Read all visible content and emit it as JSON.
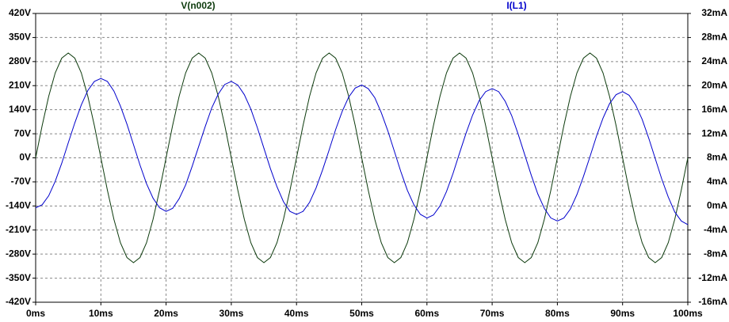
{
  "chart_data": {
    "type": "line",
    "x": [
      0,
      1,
      2,
      3,
      4,
      5,
      6,
      7,
      8,
      9,
      10,
      11,
      12,
      13,
      14,
      15,
      16,
      17,
      18,
      19,
      20,
      21,
      22,
      23,
      24,
      25,
      26,
      27,
      28,
      29,
      30,
      31,
      32,
      33,
      34,
      35,
      36,
      37,
      38,
      39,
      40,
      41,
      42,
      43,
      44,
      45,
      46,
      47,
      48,
      49,
      50,
      51,
      52,
      53,
      54,
      55,
      56,
      57,
      58,
      59,
      60,
      61,
      62,
      63,
      64,
      65,
      66,
      67,
      68,
      69,
      70,
      71,
      72,
      73,
      74,
      75,
      76,
      77,
      78,
      79,
      80,
      81,
      82,
      83,
      84,
      85,
      86,
      87,
      88,
      89,
      90,
      91,
      92,
      93,
      94,
      95,
      96,
      97,
      98,
      99,
      100
    ],
    "xlim": [
      0,
      100
    ],
    "xticks": [
      {
        "value": 0,
        "label": "0ms"
      },
      {
        "value": 10,
        "label": "10ms"
      },
      {
        "value": 20,
        "label": "20ms"
      },
      {
        "value": 30,
        "label": "30ms"
      },
      {
        "value": 40,
        "label": "40ms"
      },
      {
        "value": 50,
        "label": "50ms"
      },
      {
        "value": 60,
        "label": "60ms"
      },
      {
        "value": 70,
        "label": "70ms"
      },
      {
        "value": 80,
        "label": "80ms"
      },
      {
        "value": 90,
        "label": "90ms"
      },
      {
        "value": 100,
        "label": "100ms"
      }
    ],
    "ylim": [
      -420,
      420
    ],
    "yticks": [
      {
        "value": -420,
        "label": "-420V"
      },
      {
        "value": -350,
        "label": "-350V"
      },
      {
        "value": -280,
        "label": "-280V"
      },
      {
        "value": -210,
        "label": "-210V"
      },
      {
        "value": -140,
        "label": "-140V"
      },
      {
        "value": -70,
        "label": "-70V"
      },
      {
        "value": 0,
        "label": "0V"
      },
      {
        "value": 70,
        "label": "70V"
      },
      {
        "value": 140,
        "label": "140V"
      },
      {
        "value": 210,
        "label": "210V"
      },
      {
        "value": 280,
        "label": "280V"
      },
      {
        "value": 350,
        "label": "350V"
      },
      {
        "value": 420,
        "label": "420V"
      }
    ],
    "y2lim": [
      -16,
      32
    ],
    "y2ticks": [
      {
        "value": -16,
        "label": "-16mA"
      },
      {
        "value": -12,
        "label": "-12mA"
      },
      {
        "value": -8,
        "label": "-8mA"
      },
      {
        "value": -4,
        "label": "-4mA"
      },
      {
        "value": 0,
        "label": "0mA"
      },
      {
        "value": 4,
        "label": "4mA"
      },
      {
        "value": 8,
        "label": "8mA"
      },
      {
        "value": 12,
        "label": "12mA"
      },
      {
        "value": 16,
        "label": "16mA"
      },
      {
        "value": 20,
        "label": "20mA"
      },
      {
        "value": 24,
        "label": "24mA"
      },
      {
        "value": 28,
        "label": "28mA"
      },
      {
        "value": 32,
        "label": "32mA"
      }
    ],
    "grid": true,
    "series": [
      {
        "name": "V(n002)",
        "color": "#0d3b0d",
        "values": [
          0,
          94,
          179,
          247,
          290,
          305,
          290,
          247,
          179,
          94,
          0,
          -94,
          -179,
          -247,
          -290,
          -305,
          -290,
          -247,
          -179,
          -94,
          0,
          94,
          179,
          247,
          290,
          305,
          290,
          247,
          179,
          94,
          0,
          -94,
          -179,
          -247,
          -290,
          -305,
          -290,
          -247,
          -179,
          -94,
          0,
          94,
          179,
          247,
          290,
          305,
          290,
          247,
          179,
          94,
          0,
          -94,
          -179,
          -247,
          -290,
          -305,
          -290,
          -247,
          -179,
          -94,
          0,
          94,
          179,
          247,
          290,
          305,
          290,
          247,
          179,
          94,
          0,
          -94,
          -179,
          -247,
          -290,
          -305,
          -290,
          -247,
          -179,
          -94,
          0,
          94,
          179,
          247,
          290,
          305,
          290,
          247,
          179,
          94,
          0,
          -94,
          -179,
          -247,
          -290,
          -305,
          -290,
          -247,
          -179,
          -94,
          0
        ]
      },
      {
        "name": "I(L1)",
        "color": "#0000cc",
        "axis": "y2",
        "values": [
          -0.3,
          0.2,
          1.7,
          4.1,
          7.1,
          10.5,
          13.8,
          16.8,
          19.2,
          20.7,
          21.2,
          20.7,
          19.1,
          16.6,
          13.6,
          10.2,
          6.8,
          3.7,
          1.3,
          -0.3,
          -0.9,
          -0.4,
          1.2,
          3.5,
          6.6,
          9.9,
          13.2,
          16.3,
          18.6,
          20.2,
          20.7,
          20.1,
          18.5,
          16.1,
          13.0,
          9.6,
          6.2,
          3.2,
          0.7,
          -0.9,
          -1.4,
          -0.9,
          0.6,
          3.0,
          6.0,
          9.3,
          12.7,
          15.7,
          18.1,
          19.6,
          20.1,
          19.5,
          18.0,
          15.5,
          12.5,
          9.1,
          5.7,
          2.6,
          0.2,
          -1.4,
          -2.0,
          -1.5,
          0.0,
          2.4,
          5.4,
          8.8,
          12.1,
          15.1,
          17.5,
          19.0,
          19.5,
          19.0,
          17.4,
          15.0,
          11.9,
          8.5,
          5.1,
          2.0,
          -0.4,
          -2.0,
          -2.5,
          -2.0,
          -0.5,
          1.9,
          4.9,
          8.2,
          11.6,
          14.6,
          17.0,
          18.5,
          19.0,
          18.4,
          16.8,
          14.4,
          11.3,
          7.9,
          4.5,
          1.5,
          -1.0,
          -2.5,
          -3.1
        ]
      }
    ]
  }
}
